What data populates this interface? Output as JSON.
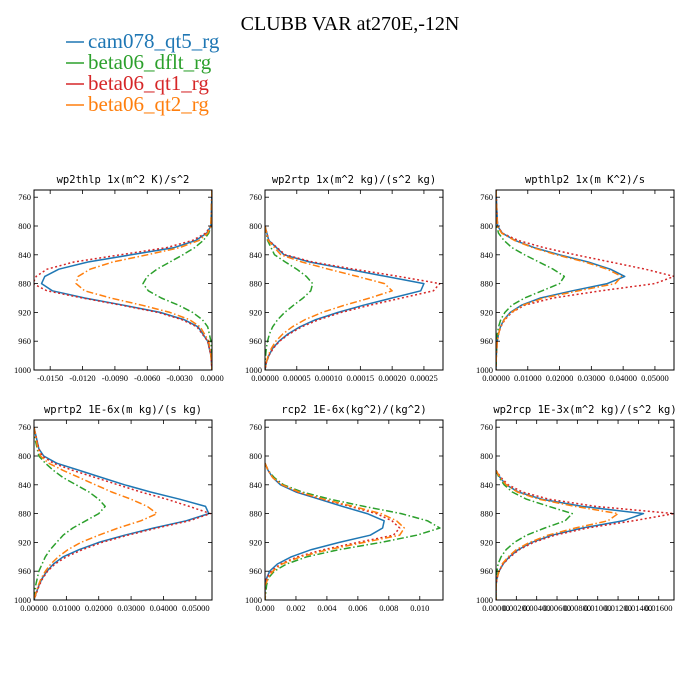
{
  "title": "CLUBB VAR at270E,-12N",
  "legend": [
    {
      "label": "cam078_qt5_rg",
      "color": "#1f77b4",
      "dash": "solid"
    },
    {
      "label": "beta06_dflt_rg",
      "color": "#2ca02c",
      "dash": "dashdot"
    },
    {
      "label": "beta06_qt1_rg",
      "color": "#d62728",
      "dash": "dot"
    },
    {
      "label": "beta06_qt2_rg",
      "color": "#ff7f0e",
      "dash": "dashdot"
    }
  ],
  "chart_data": [
    {
      "type": "line",
      "title": "wp2thlp   1x(m^2 K)/s^2",
      "xlim": [
        -0.0165,
        0.0
      ],
      "ylim": [
        1000,
        750
      ],
      "x_ticks": [
        -0.015,
        -0.012,
        -0.009,
        -0.006,
        -0.003,
        0.0
      ],
      "x_tick_labels": [
        "-0.0150",
        "-0.0120",
        "-0.0090",
        "-0.0060",
        "-0.0030",
        "0.0000"
      ],
      "y_ticks": [
        760,
        800,
        840,
        880,
        920,
        960,
        1000
      ],
      "y": [
        750,
        800,
        810,
        820,
        830,
        840,
        850,
        860,
        870,
        880,
        890,
        900,
        910,
        920,
        930,
        940,
        960,
        980,
        1000
      ],
      "series": [
        {
          "values": [
            0,
            -0.0001,
            -0.0005,
            -0.0015,
            -0.0035,
            -0.0075,
            -0.0115,
            -0.0142,
            -0.0155,
            -0.0158,
            -0.0148,
            -0.0118,
            -0.0082,
            -0.0048,
            -0.0026,
            -0.0013,
            -0.0004,
            -0.0001,
            0
          ]
        },
        {
          "values": [
            0,
            -0.0001,
            -0.0003,
            -0.0008,
            -0.0016,
            -0.0027,
            -0.0039,
            -0.0051,
            -0.006,
            -0.0064,
            -0.0059,
            -0.0047,
            -0.0031,
            -0.0018,
            -0.0009,
            -0.0004,
            -0.0001,
            0,
            0
          ]
        },
        {
          "values": [
            0,
            -0.0001,
            -0.0006,
            -0.0018,
            -0.0042,
            -0.0085,
            -0.0128,
            -0.0153,
            -0.0163,
            -0.0166,
            -0.0153,
            -0.012,
            -0.0084,
            -0.005,
            -0.0028,
            -0.0014,
            -0.0004,
            -0.0001,
            0
          ]
        },
        {
          "values": [
            0,
            -0.0001,
            -0.0004,
            -0.0012,
            -0.003,
            -0.006,
            -0.0092,
            -0.0113,
            -0.0124,
            -0.0126,
            -0.0118,
            -0.0094,
            -0.0065,
            -0.0039,
            -0.0021,
            -0.0011,
            -0.0003,
            -0.0001,
            0
          ]
        }
      ]
    },
    {
      "type": "line",
      "title": "wp2rtp   1x(m^2 kg)/(s^2 kg)",
      "xlim": [
        0.0,
        0.00028
      ],
      "ylim": [
        1000,
        750
      ],
      "x_ticks": [
        0.0,
        5e-05,
        0.0001,
        0.00015,
        0.0002,
        0.00025
      ],
      "x_tick_labels": [
        "0.00000",
        "0.00005",
        "0.00010",
        "0.00015",
        "0.00020",
        "0.00025"
      ],
      "y_ticks": [
        760,
        800,
        840,
        880,
        920,
        960,
        1000
      ],
      "y": [
        800,
        820,
        840,
        850,
        860,
        870,
        880,
        890,
        900,
        910,
        920,
        930,
        940,
        950,
        960,
        970,
        980,
        990,
        1000
      ],
      "series": [
        {
          "values": [
            0,
            6e-06,
            3e-05,
            7e-05,
            0.00013,
            0.00019,
            0.00025,
            0.000245,
            0.0002,
            0.000155,
            0.000115,
            8e-05,
            5.5e-05,
            3.6e-05,
            2.2e-05,
            1.2e-05,
            6e-06,
            2e-06,
            0
          ]
        },
        {
          "values": [
            0,
            4e-06,
            1.5e-05,
            3.2e-05,
            5e-05,
            6.5e-05,
            7.5e-05,
            7.2e-05,
            6e-05,
            4.5e-05,
            3.1e-05,
            2e-05,
            1.2e-05,
            7e-06,
            4e-06,
            2e-06,
            1e-06,
            0,
            0
          ]
        },
        {
          "values": [
            0,
            6e-06,
            3.2e-05,
            7.5e-05,
            0.00014,
            0.00021,
            0.000275,
            0.000265,
            0.000215,
            0.000165,
            0.00012,
            8.5e-05,
            5.8e-05,
            3.8e-05,
            2.3e-05,
            1.3e-05,
            6e-06,
            2e-06,
            0
          ]
        },
        {
          "values": [
            0,
            5e-06,
            2.5e-05,
            5.8e-05,
            0.0001,
            0.000145,
            0.000188,
            0.0002,
            0.000165,
            0.000125,
            9e-05,
            6.3e-05,
            4.3e-05,
            2.8e-05,
            1.7e-05,
            1e-05,
            5e-06,
            2e-06,
            0
          ]
        }
      ]
    },
    {
      "type": "line",
      "title": "wpthlp2   1x(m K^2)/s",
      "xlim": [
        0.0,
        0.056
      ],
      "ylim": [
        1000,
        750
      ],
      "x_ticks": [
        0.0,
        0.01,
        0.02,
        0.03,
        0.04,
        0.05
      ],
      "x_tick_labels": [
        "0.00000",
        "0.01000",
        "0.02000",
        "0.03000",
        "0.04000",
        "0.05000"
      ],
      "y_ticks": [
        760,
        800,
        840,
        880,
        920,
        960,
        1000
      ],
      "y": [
        750,
        800,
        810,
        820,
        830,
        840,
        850,
        860,
        870,
        880,
        890,
        900,
        910,
        920,
        930,
        940,
        950,
        960,
        980,
        1000
      ],
      "series": [
        {
          "values": [
            0,
            0.0005,
            0.002,
            0.006,
            0.012,
            0.02,
            0.029,
            0.036,
            0.0405,
            0.035,
            0.024,
            0.014,
            0.008,
            0.0045,
            0.0025,
            0.0014,
            0.0008,
            0.0004,
            0.0001,
            0
          ]
        },
        {
          "values": [
            0,
            0.0002,
            0.0008,
            0.0025,
            0.005,
            0.009,
            0.0135,
            0.018,
            0.0215,
            0.02,
            0.0145,
            0.009,
            0.005,
            0.0028,
            0.0015,
            0.0008,
            0.0004,
            0.0002,
            0.0001,
            0
          ]
        },
        {
          "values": [
            0,
            0.0005,
            0.002,
            0.007,
            0.015,
            0.025,
            0.036,
            0.047,
            0.056,
            0.05,
            0.033,
            0.018,
            0.009,
            0.005,
            0.0028,
            0.0015,
            0.0008,
            0.0004,
            0.0001,
            0
          ]
        },
        {
          "values": [
            0,
            0.0004,
            0.0018,
            0.0058,
            0.0115,
            0.019,
            0.028,
            0.035,
            0.0395,
            0.0375,
            0.026,
            0.015,
            0.0085,
            0.0048,
            0.0026,
            0.0014,
            0.0008,
            0.0004,
            0.0001,
            0
          ]
        }
      ]
    },
    {
      "type": "line",
      "title": "wprtp2   1E-6x(m kg)/(s kg)",
      "xlim": [
        0.0,
        0.055
      ],
      "ylim": [
        1000,
        750
      ],
      "x_ticks": [
        0.0,
        0.01,
        0.02,
        0.03,
        0.04,
        0.05
      ],
      "x_tick_labels": [
        "0.00000",
        "0.01000",
        "0.02000",
        "0.03000",
        "0.04000",
        "0.05000"
      ],
      "y_ticks": [
        760,
        800,
        840,
        880,
        920,
        960,
        1000
      ],
      "y": [
        760,
        780,
        790,
        800,
        810,
        820,
        830,
        840,
        850,
        860,
        870,
        880,
        890,
        900,
        910,
        920,
        930,
        940,
        950,
        960,
        970,
        980,
        990,
        1000
      ],
      "series": [
        {
          "values": [
            0,
            0.001,
            0.0015,
            0.003,
            0.007,
            0.014,
            0.021,
            0.028,
            0.036,
            0.045,
            0.053,
            0.054,
            0.047,
            0.037,
            0.028,
            0.02,
            0.014,
            0.009,
            0.006,
            0.004,
            0.0025,
            0.0015,
            0.0007,
            0
          ]
        },
        {
          "values": [
            0,
            0.0005,
            0.001,
            0.0015,
            0.0035,
            0.006,
            0.009,
            0.013,
            0.017,
            0.02,
            0.022,
            0.02,
            0.016,
            0.012,
            0.009,
            0.007,
            0.005,
            0.0035,
            0.0025,
            0.0015,
            0.001,
            0.0005,
            0.0002,
            0
          ]
        },
        {
          "values": [
            0,
            0.001,
            0.0015,
            0.0025,
            0.006,
            0.012,
            0.019,
            0.026,
            0.033,
            0.041,
            0.048,
            0.0545,
            0.048,
            0.038,
            0.029,
            0.021,
            0.015,
            0.01,
            0.0065,
            0.0042,
            0.0027,
            0.0016,
            0.0008,
            0
          ]
        },
        {
          "values": [
            0,
            0.0008,
            0.0012,
            0.002,
            0.0045,
            0.009,
            0.014,
            0.019,
            0.024,
            0.03,
            0.035,
            0.038,
            0.033,
            0.026,
            0.02,
            0.0145,
            0.0105,
            0.0075,
            0.0052,
            0.0035,
            0.0022,
            0.0013,
            0.0006,
            0
          ]
        }
      ]
    },
    {
      "type": "line",
      "title": "rcp2   1E-6x(kg^2)/(kg^2)",
      "xlim": [
        0.0,
        0.0115
      ],
      "ylim": [
        1000,
        750
      ],
      "x_ticks": [
        0.0,
        0.002,
        0.004,
        0.006,
        0.008,
        0.01
      ],
      "x_tick_labels": [
        "0.000",
        "0.002",
        "0.004",
        "0.006",
        "0.008",
        "0.010"
      ],
      "y_ticks": [
        760,
        800,
        840,
        880,
        920,
        960,
        1000
      ],
      "y": [
        810,
        820,
        830,
        840,
        850,
        860,
        870,
        880,
        890,
        900,
        910,
        920,
        930,
        940,
        950,
        960,
        970,
        980,
        1000
      ],
      "series": [
        {
          "values": [
            0,
            0.0002,
            0.0005,
            0.001,
            0.002,
            0.0035,
            0.005,
            0.0066,
            0.0077,
            0.0076,
            0.0068,
            0.0048,
            0.003,
            0.0017,
            0.0008,
            0.0003,
            0.0001,
            0,
            0
          ]
        },
        {
          "values": [
            0,
            0.0002,
            0.0006,
            0.0012,
            0.0024,
            0.0042,
            0.0064,
            0.0088,
            0.0105,
            0.0113,
            0.0098,
            0.0075,
            0.0048,
            0.0027,
            0.0014,
            0.0006,
            0.0002,
            0.0001,
            0
          ]
        },
        {
          "values": [
            0,
            0.0002,
            0.0005,
            0.0011,
            0.0021,
            0.0037,
            0.0055,
            0.0072,
            0.0082,
            0.0087,
            0.0083,
            0.006,
            0.0038,
            0.0021,
            0.001,
            0.0004,
            0.0001,
            0,
            0
          ]
        },
        {
          "values": [
            0,
            0.0002,
            0.0005,
            0.0011,
            0.0022,
            0.0038,
            0.0057,
            0.0075,
            0.0085,
            0.009,
            0.0087,
            0.0064,
            0.0041,
            0.0023,
            0.0011,
            0.0005,
            0.0002,
            0,
            0
          ]
        }
      ]
    },
    {
      "type": "line",
      "title": "wp2rcp   1E-3x(m^2 kg)/(s^2 kg)",
      "xlim": [
        0.0,
        0.0175
      ],
      "ylim": [
        1000,
        750
      ],
      "x_ticks": [
        0.0,
        0.002,
        0.004,
        0.006,
        0.008,
        0.01,
        0.012,
        0.014,
        0.016
      ],
      "x_tick_labels": [
        "0.00000",
        "0.00200",
        "0.00400",
        "0.00600",
        "0.00800",
        "0.01000",
        "0.01200",
        "0.01400",
        "0.01600"
      ],
      "y_ticks": [
        760,
        800,
        840,
        880,
        920,
        960,
        1000
      ],
      "y": [
        820,
        830,
        840,
        850,
        860,
        870,
        880,
        890,
        900,
        910,
        920,
        930,
        940,
        950,
        960,
        970,
        980,
        1000
      ],
      "series": [
        {
          "values": [
            0,
            0.0004,
            0.001,
            0.0022,
            0.0045,
            0.0085,
            0.0145,
            0.0125,
            0.0085,
            0.0055,
            0.0035,
            0.0022,
            0.0013,
            0.0007,
            0.0003,
            0.0001,
            0,
            0
          ]
        },
        {
          "values": [
            0,
            0.0003,
            0.0008,
            0.0016,
            0.003,
            0.0052,
            0.0075,
            0.0068,
            0.0048,
            0.003,
            0.0018,
            0.001,
            0.0005,
            0.0002,
            0.0001,
            0,
            0,
            0
          ]
        },
        {
          "values": [
            0,
            0.0005,
            0.0012,
            0.0026,
            0.0052,
            0.0098,
            0.0175,
            0.0135,
            0.009,
            0.0058,
            0.0037,
            0.0023,
            0.0014,
            0.0007,
            0.0003,
            0.0001,
            0,
            0
          ]
        },
        {
          "values": [
            0,
            0.0004,
            0.001,
            0.0021,
            0.0042,
            0.0078,
            0.012,
            0.011,
            0.0078,
            0.0051,
            0.0033,
            0.002,
            0.0012,
            0.0006,
            0.0003,
            0.0001,
            0,
            0
          ]
        }
      ]
    }
  ]
}
